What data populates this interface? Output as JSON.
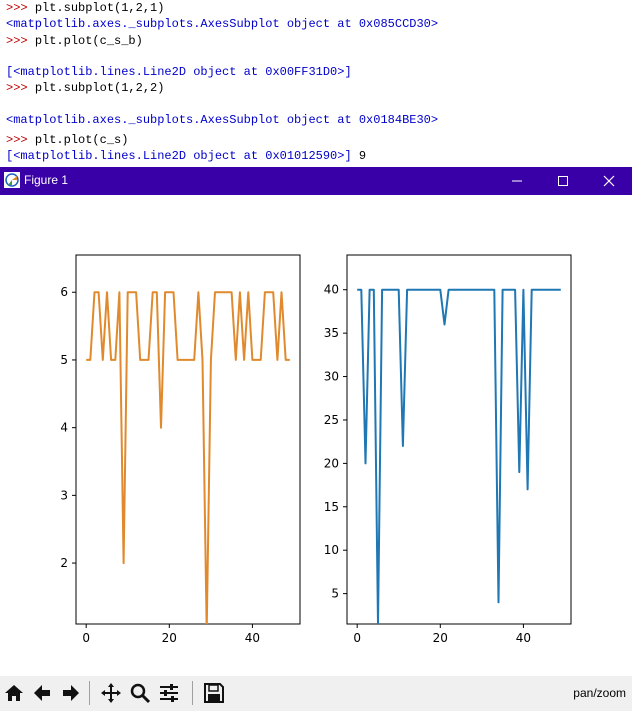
{
  "console": {
    "lines": [
      {
        "prompt": ">>> ",
        "text": "plt.subplot(1,2,1)",
        "kind": "cmd"
      },
      {
        "prompt": "",
        "text": "<matplotlib.axes._subplots.AxesSubplot object at 0x085CCD30>",
        "kind": "out"
      },
      {
        "prompt": ">>> ",
        "text": "plt.plot(c_s_b)",
        "kind": "cmd"
      },
      {
        "prompt": "",
        "text": "",
        "kind": "blank"
      },
      {
        "prompt": "",
        "text": "[<matplotlib.lines.Line2D object at 0x00FF31D0>]",
        "kind": "out"
      },
      {
        "prompt": ">>> ",
        "text": "plt.subplot(1,2,2)",
        "kind": "cmd"
      },
      {
        "prompt": "",
        "text": "",
        "kind": "blank"
      },
      {
        "prompt": "",
        "text": "<matplotlib.axes._subplots.AxesSubplot object at 0x0184BE30>",
        "kind": "out"
      },
      {
        "prompt": "",
        "text": "",
        "kind": "blank"
      },
      {
        "prompt": ">>> ",
        "text": "plt.plot(c_s)",
        "kind": "cmd"
      },
      {
        "prompt": "",
        "text": "[<matplotlib.lines.Line2D object at 0x01012590>]",
        "kind": "out",
        "suffix": " 9"
      }
    ]
  },
  "window": {
    "title": "Figure 1",
    "minimize_icon": "minimize-icon",
    "maximize_icon": "maximize-icon",
    "close_icon": "close-icon",
    "titlebar_color": "#3a00a8"
  },
  "toolbar": {
    "buttons": [
      "home-icon",
      "back-icon",
      "forward-icon",
      "pan-icon",
      "zoom-icon",
      "configure-subplots-icon",
      "save-icon"
    ],
    "mode": "pan/zoom"
  },
  "chart_data": [
    {
      "type": "line",
      "color": "#e08a2d",
      "x": [
        0,
        1,
        2,
        3,
        4,
        5,
        6,
        7,
        8,
        9,
        10,
        11,
        12,
        13,
        14,
        15,
        16,
        17,
        18,
        19,
        20,
        21,
        22,
        23,
        24,
        25,
        26,
        27,
        28,
        29,
        30,
        31,
        32,
        33,
        34,
        35,
        36,
        37,
        38,
        39,
        40,
        41,
        42,
        43,
        44,
        45,
        46,
        47,
        48,
        49
      ],
      "values": [
        5,
        5,
        6,
        6,
        5,
        6,
        5,
        5,
        6,
        2,
        6,
        6,
        6,
        5,
        5,
        5,
        6,
        6,
        4,
        6,
        6,
        6,
        5,
        5,
        5,
        5,
        5,
        6,
        5,
        1,
        5,
        6,
        6,
        6,
        6,
        6,
        5,
        6,
        5,
        6,
        5,
        5,
        5,
        6,
        6,
        6,
        5,
        6,
        5,
        5
      ],
      "xlim": [
        -2.45,
        51.45
      ],
      "ylim": [
        1.1,
        6.55
      ],
      "xticks": [
        "0",
        "20",
        "40"
      ],
      "xtick_values": [
        0,
        20,
        40
      ],
      "yticks": [
        "2",
        "3",
        "4",
        "5",
        "6"
      ],
      "ytick_values": [
        2,
        3,
        4,
        5,
        6
      ]
    },
    {
      "type": "line",
      "color": "#1f77b4",
      "x": [
        0,
        1,
        2,
        3,
        4,
        5,
        6,
        7,
        8,
        9,
        10,
        11,
        12,
        13,
        14,
        15,
        16,
        17,
        18,
        19,
        20,
        21,
        22,
        23,
        24,
        25,
        26,
        27,
        28,
        29,
        30,
        31,
        32,
        33,
        34,
        35,
        36,
        37,
        38,
        39,
        40,
        41,
        42,
        43,
        44,
        45,
        46,
        47,
        48,
        49
      ],
      "values": [
        40,
        40,
        20,
        40,
        40,
        1.5,
        40,
        40,
        40,
        40,
        40,
        22,
        40,
        40,
        40,
        40,
        40,
        40,
        40,
        40,
        40,
        36,
        40,
        40,
        40,
        40,
        40,
        40,
        40,
        40,
        40,
        40,
        40,
        40,
        4,
        40,
        40,
        40,
        40,
        19,
        40,
        17,
        40,
        40,
        40,
        40,
        40,
        40,
        40,
        40
      ],
      "xlim": [
        -2.45,
        51.45
      ],
      "ylim": [
        1.5,
        44
      ],
      "xticks": [
        "0",
        "20",
        "40"
      ],
      "xtick_values": [
        0,
        20,
        40
      ],
      "yticks": [
        "5",
        "10",
        "15",
        "20",
        "25",
        "30",
        "35",
        "40"
      ],
      "ytick_values": [
        5,
        10,
        15,
        20,
        25,
        30,
        35,
        40
      ]
    }
  ]
}
